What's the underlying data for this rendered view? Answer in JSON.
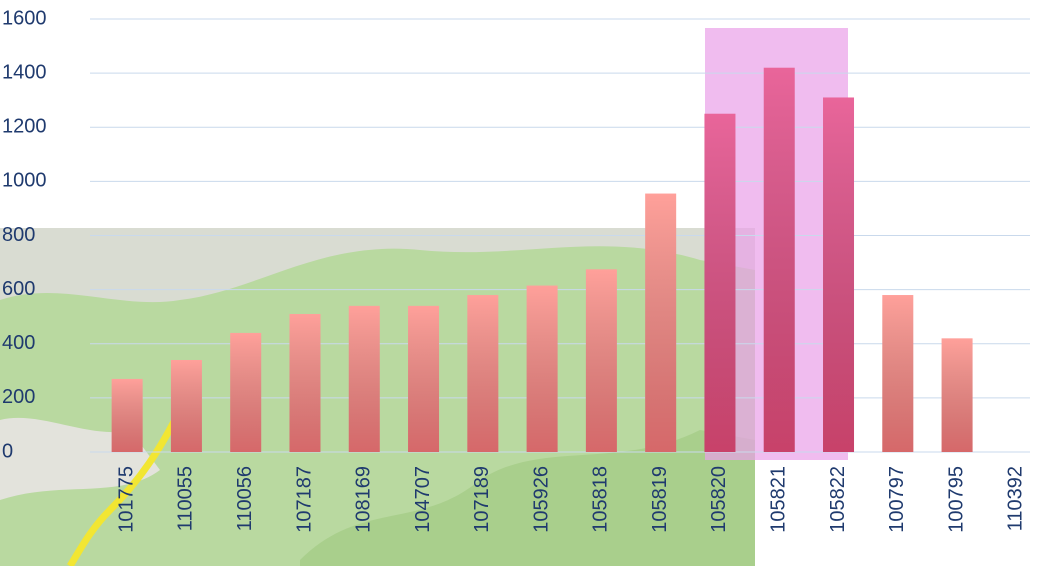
{
  "chart_data": {
    "type": "bar",
    "categories": [
      "101775",
      "110055",
      "110056",
      "107187",
      "108169",
      "104707",
      "107189",
      "105926",
      "105818",
      "105819",
      "105820",
      "105821",
      "105822",
      "100797",
      "100795",
      "110392"
    ],
    "values": [
      270,
      340,
      440,
      510,
      540,
      540,
      580,
      615,
      675,
      955,
      1250,
      1420,
      1310,
      580,
      420,
      0
    ],
    "colors": [
      "#ffa09a",
      "#ffa09a",
      "#ffa09a",
      "#ffa09a",
      "#ffa09a",
      "#ffa09a",
      "#ffa09a",
      "#ffa09a",
      "#ffa09a",
      "#ffa09a",
      "#e9659a",
      "#e9659a",
      "#e9659a",
      "#ffa09a",
      "#ffa09a",
      "#ffa09a"
    ],
    "ylim": [
      0,
      1600
    ],
    "yticks": [
      0,
      200,
      400,
      600,
      800,
      1000,
      1200,
      1400,
      1600
    ],
    "grid": true
  }
}
